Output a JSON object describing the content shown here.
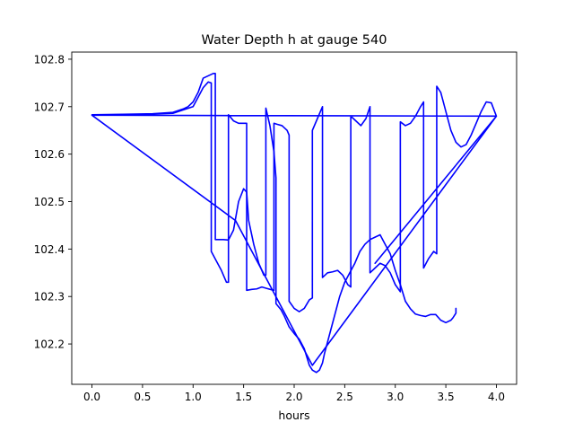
{
  "chart_data": {
    "type": "line",
    "title": "Water Depth h at gauge 540",
    "xlabel": "hours",
    "ylabel": "",
    "xlim": [
      -0.2,
      4.2
    ],
    "ylim": [
      102.115,
      102.815
    ],
    "xticks": [
      0,
      0.5,
      1,
      1.5,
      2,
      2.5,
      3,
      3.5,
      4
    ],
    "xtick_labels": [
      "0.0",
      "0.5",
      "1.0",
      "1.5",
      "2.0",
      "2.5",
      "3.0",
      "3.5",
      "4.0"
    ],
    "yticks": [
      102.2,
      102.3,
      102.4,
      102.5,
      102.6,
      102.7,
      102.8
    ],
    "ytick_labels": [
      "102.2",
      "102.3",
      "102.4",
      "102.5",
      "102.6",
      "102.7",
      "102.8"
    ],
    "grid": false,
    "series": [
      {
        "color": "#0000ff",
        "x": [
          0.0,
          0.3,
          0.6,
          0.8,
          0.9,
          0.95,
          1.0,
          1.05,
          1.1,
          1.15,
          1.2,
          1.22,
          1.22,
          1.3,
          1.35,
          1.4,
          1.45,
          1.5,
          1.53,
          1.55,
          1.6,
          1.65,
          1.7,
          1.72,
          1.72,
          1.76,
          1.8,
          1.82,
          1.82,
          1.87,
          1.9,
          1.95,
          2.0,
          2.05,
          2.1,
          2.15,
          2.18,
          2.22,
          2.25,
          2.28,
          2.3,
          2.35,
          2.4,
          2.45,
          2.5,
          2.55,
          2.6,
          2.65,
          2.7,
          2.75,
          2.8,
          2.85,
          2.9,
          2.95,
          3.0,
          3.05,
          3.1,
          3.15,
          3.2,
          3.25,
          3.3,
          3.35,
          3.4,
          3.45,
          3.5,
          3.55,
          3.57,
          3.6,
          3.6
        ],
        "y": [
          102.683,
          102.684,
          102.685,
          102.688,
          102.695,
          102.7,
          102.71,
          102.73,
          102.76,
          102.765,
          102.77,
          102.77,
          102.42,
          102.42,
          102.419,
          102.44,
          102.5,
          102.527,
          102.52,
          102.46,
          102.41,
          102.37,
          102.345,
          102.345,
          102.697,
          102.66,
          102.605,
          102.55,
          102.285,
          102.272,
          102.26,
          102.236,
          102.222,
          102.21,
          102.19,
          102.155,
          102.145,
          102.14,
          102.145,
          102.16,
          102.18,
          102.22,
          102.26,
          102.3,
          102.33,
          102.35,
          102.37,
          102.395,
          102.41,
          102.42,
          102.425,
          102.43,
          102.41,
          102.39,
          102.355,
          102.325,
          102.29,
          102.274,
          102.263,
          102.26,
          102.258,
          102.262,
          102.262,
          102.25,
          102.245,
          102.25,
          102.255,
          102.265,
          102.275
        ]
      },
      {
        "color": "#0000ff",
        "x": [
          0.0,
          0.4,
          0.8,
          1.0,
          1.05,
          1.1,
          1.15,
          1.18,
          1.18,
          1.23,
          1.28,
          1.33,
          1.35,
          1.35,
          1.4,
          1.45,
          1.5,
          1.53,
          1.53,
          1.58,
          1.63,
          1.68,
          1.73,
          1.78,
          1.8,
          1.8,
          1.83,
          1.83,
          1.88,
          1.93,
          1.95,
          1.95,
          2.0,
          2.05,
          2.1,
          2.15,
          2.18,
          2.18,
          2.23,
          2.28,
          2.28,
          2.33,
          2.38,
          2.43,
          2.48,
          2.53,
          2.56,
          2.56,
          2.61,
          2.66,
          2.71,
          2.75,
          2.75,
          2.8,
          2.85,
          2.9,
          2.95,
          3.0,
          3.05,
          3.05,
          3.1,
          3.15,
          3.2,
          3.25,
          3.28,
          3.28,
          3.33,
          3.38,
          3.41,
          3.41,
          3.45,
          3.5,
          3.55,
          3.6,
          3.65,
          3.7,
          3.75,
          3.8,
          3.85,
          3.9,
          3.95,
          4.0,
          2.18,
          1.42,
          0.0,
          4.0,
          2.8
        ],
        "y": [
          102.682,
          102.683,
          102.686,
          102.7,
          102.72,
          102.74,
          102.752,
          102.75,
          102.395,
          102.375,
          102.355,
          102.33,
          102.33,
          102.683,
          102.67,
          102.665,
          102.665,
          102.665,
          102.313,
          102.315,
          102.316,
          102.32,
          102.317,
          102.314,
          102.313,
          102.665,
          102.663,
          102.663,
          102.66,
          102.65,
          102.64,
          102.29,
          102.275,
          102.268,
          102.275,
          102.293,
          102.297,
          102.65,
          102.675,
          102.7,
          102.34,
          102.35,
          102.352,
          102.355,
          102.345,
          102.325,
          102.32,
          102.68,
          102.67,
          102.66,
          102.675,
          102.7,
          102.35,
          102.36,
          102.37,
          102.365,
          102.35,
          102.325,
          102.31,
          102.668,
          102.66,
          102.665,
          102.68,
          102.7,
          102.71,
          102.36,
          102.38,
          102.395,
          102.39,
          102.743,
          102.73,
          102.69,
          102.65,
          102.625,
          102.615,
          102.62,
          102.64,
          102.665,
          102.69,
          102.71,
          102.708,
          102.68,
          102.155,
          102.46,
          102.682,
          102.68,
          102.37
        ]
      }
    ]
  }
}
